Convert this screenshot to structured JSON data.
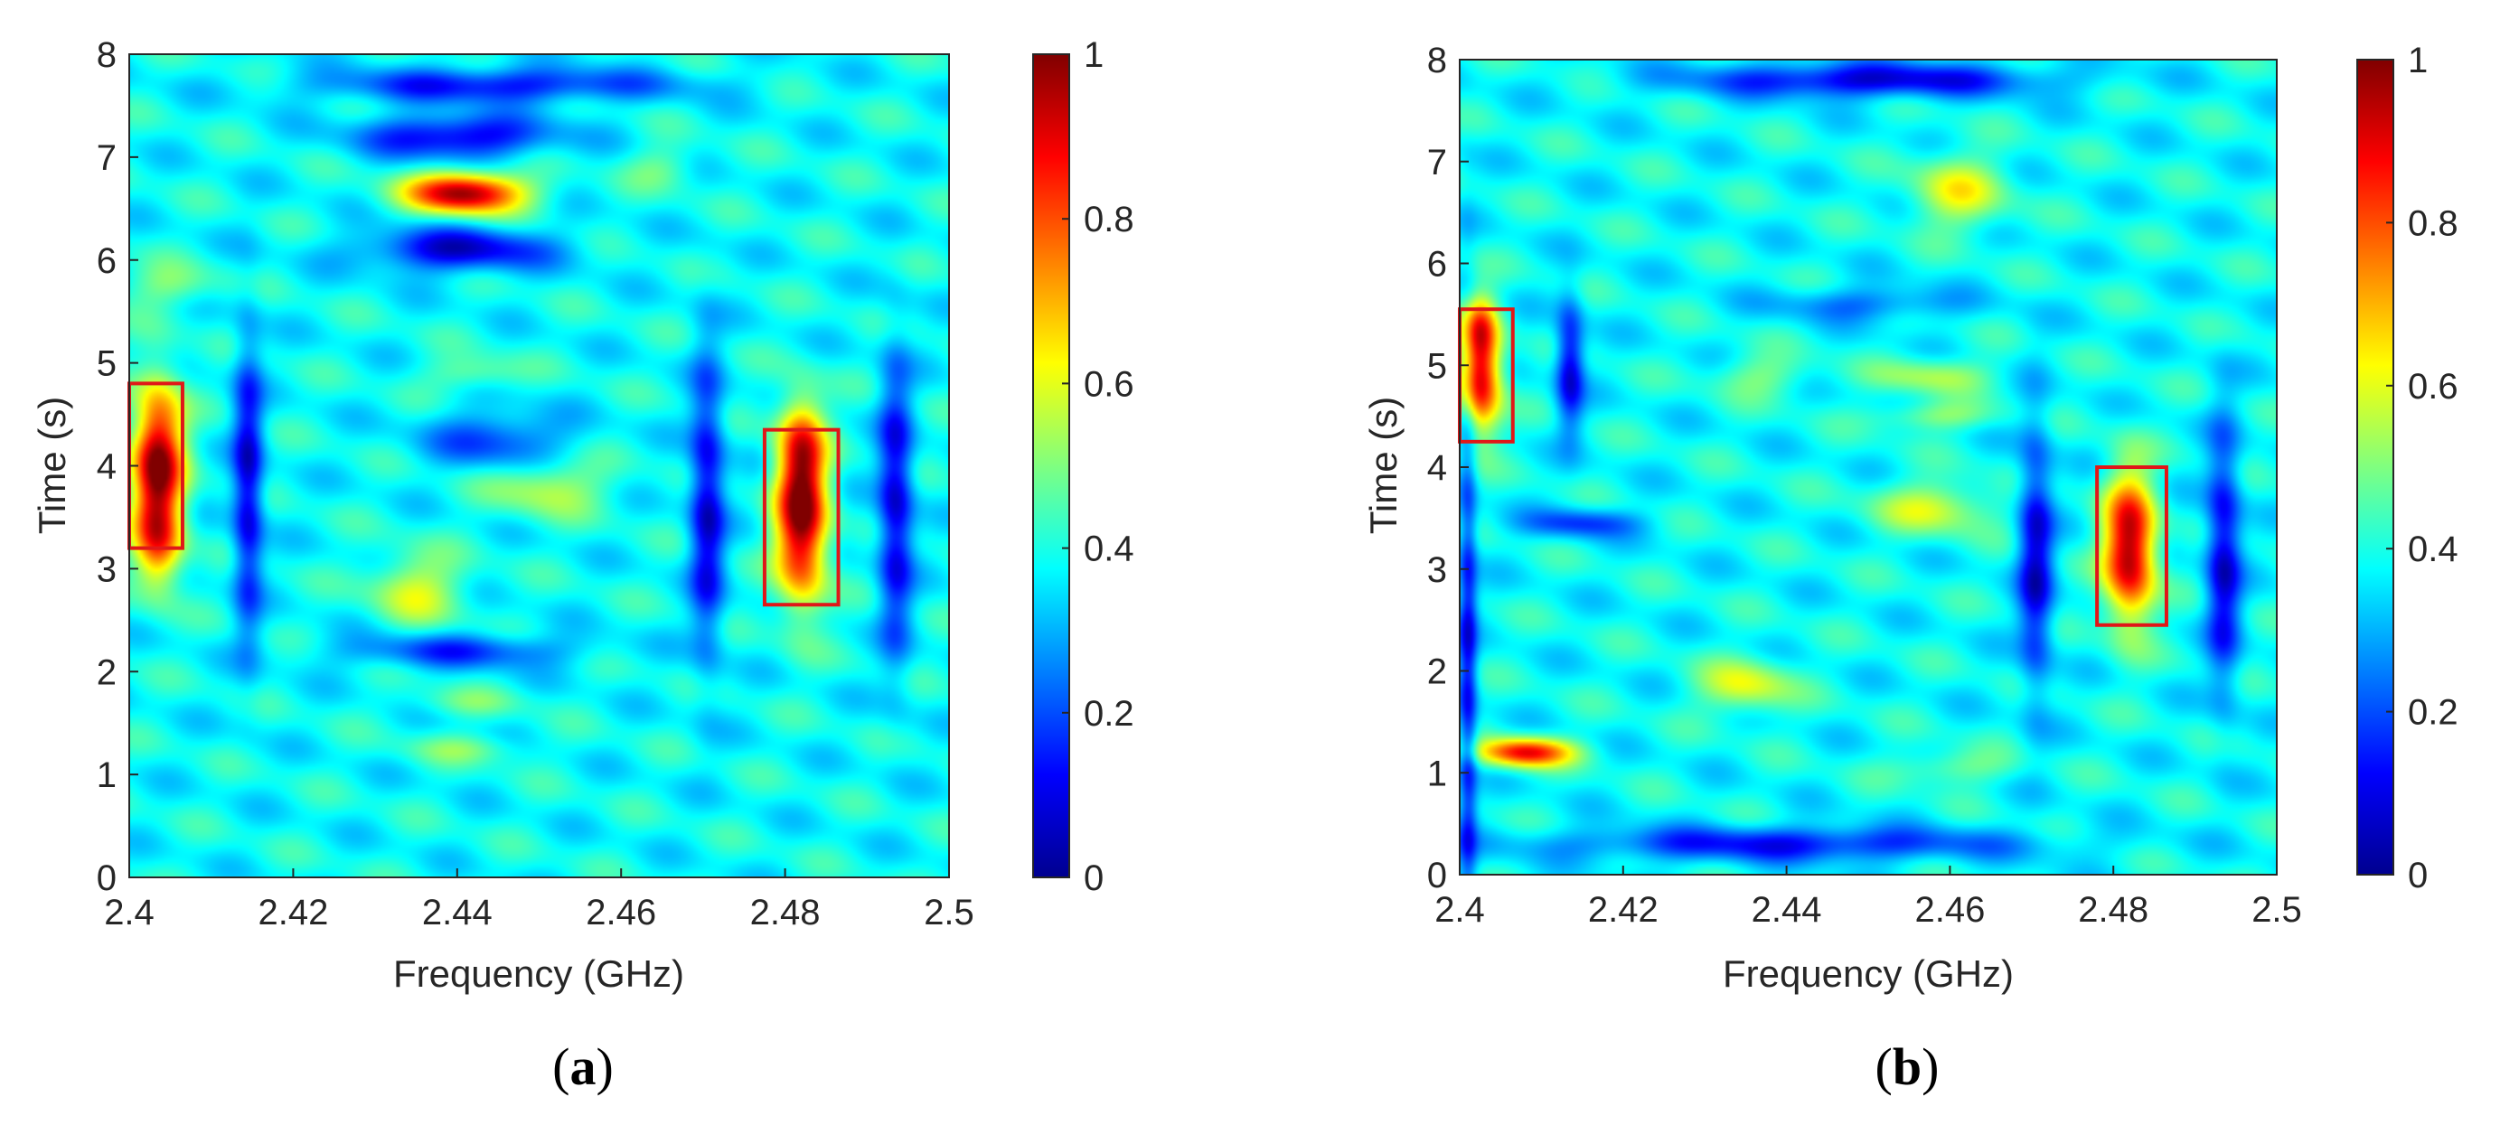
{
  "colors": {
    "background": "#40c0ff",
    "box": "#e01818",
    "axis": "#262626"
  },
  "colormap": "jet",
  "chart_data": [
    {
      "type": "heatmap",
      "panel_label": "a",
      "xlabel": "Frequency (GHz)",
      "ylabel": "Time (s)",
      "xlim": [
        2.4,
        2.5
      ],
      "ylim": [
        0,
        8
      ],
      "xticks": [
        "2.4",
        "2.42",
        "2.44",
        "2.46",
        "2.48",
        "2.5"
      ],
      "yticks": [
        "0",
        "1",
        "2",
        "3",
        "4",
        "5",
        "6",
        "7",
        "8"
      ],
      "colorbar": {
        "range": [
          0,
          1
        ],
        "ticks": [
          "0",
          "0.2",
          "0.4",
          "0.6",
          "0.8",
          "1"
        ]
      },
      "baseline": 0.38,
      "hot_spots": [
        {
          "f": 2.4035,
          "t": 4.0,
          "sf": 0.0022,
          "st": 0.55,
          "a": 0.62
        },
        {
          "f": 2.4035,
          "t": 3.2,
          "sf": 0.002,
          "st": 0.3,
          "a": 0.25
        },
        {
          "f": 2.482,
          "t": 3.45,
          "sf": 0.0022,
          "st": 0.55,
          "a": 0.6
        },
        {
          "f": 2.482,
          "t": 4.2,
          "sf": 0.002,
          "st": 0.35,
          "a": 0.3
        },
        {
          "f": 2.441,
          "t": 6.65,
          "sf": 0.005,
          "st": 0.14,
          "a": 0.6
        },
        {
          "f": 2.435,
          "t": 2.8,
          "sf": 0.004,
          "st": 0.25,
          "a": 0.2
        },
        {
          "f": 2.451,
          "t": 3.8,
          "sf": 0.005,
          "st": 0.2,
          "a": 0.18
        },
        {
          "f": 2.405,
          "t": 5.75,
          "sf": 0.004,
          "st": 0.15,
          "a": 0.12
        },
        {
          "f": 2.465,
          "t": 6.9,
          "sf": 0.003,
          "st": 0.15,
          "a": 0.1
        },
        {
          "f": 2.442,
          "t": 4.9,
          "sf": 0.004,
          "st": 0.12,
          "a": 0.12
        },
        {
          "f": 2.441,
          "t": 1.25,
          "sf": 0.005,
          "st": 0.1,
          "a": 0.1
        },
        {
          "f": 2.441,
          "t": 1.7,
          "sf": 0.005,
          "st": 0.1,
          "a": 0.08
        }
      ],
      "cold_spots": [
        {
          "f": 2.4145,
          "t": 3.8,
          "sf": 0.0013,
          "st": 1.0,
          "a": 0.3
        },
        {
          "f": 2.4705,
          "t": 3.6,
          "sf": 0.0015,
          "st": 1.0,
          "a": 0.3
        },
        {
          "f": 2.4935,
          "t": 3.6,
          "sf": 0.0015,
          "st": 1.0,
          "a": 0.3
        },
        {
          "f": 2.44,
          "t": 7.2,
          "sf": 0.008,
          "st": 0.15,
          "a": 0.3
        },
        {
          "f": 2.44,
          "t": 6.1,
          "sf": 0.008,
          "st": 0.15,
          "a": 0.3
        },
        {
          "f": 2.445,
          "t": 7.7,
          "sf": 0.015,
          "st": 0.12,
          "a": 0.25
        },
        {
          "f": 2.44,
          "t": 2.2,
          "sf": 0.01,
          "st": 0.12,
          "a": 0.2
        },
        {
          "f": 2.445,
          "t": 4.25,
          "sf": 0.006,
          "st": 0.2,
          "a": 0.2
        }
      ],
      "boxes": [
        {
          "f0": 2.4,
          "f1": 2.4065,
          "t0": 3.2,
          "t1": 4.8
        },
        {
          "f0": 2.4775,
          "f1": 2.4865,
          "t0": 2.65,
          "t1": 4.35
        }
      ]
    },
    {
      "type": "heatmap",
      "panel_label": "b",
      "xlabel": "Frequency (GHz)",
      "ylabel": "Time (s)",
      "xlim": [
        2.4,
        2.5
      ],
      "ylim": [
        0,
        8
      ],
      "xticks": [
        "2.4",
        "2.42",
        "2.44",
        "2.46",
        "2.48",
        "2.5"
      ],
      "yticks": [
        "0",
        "1",
        "2",
        "3",
        "4",
        "5",
        "6",
        "7",
        "8"
      ],
      "colorbar": {
        "range": [
          0,
          1
        ],
        "ticks": [
          "0",
          "0.2",
          "0.4",
          "0.6",
          "0.8",
          "1"
        ]
      },
      "baseline": 0.38,
      "hot_spots": [
        {
          "f": 2.4025,
          "t": 4.9,
          "sf": 0.0018,
          "st": 0.4,
          "a": 0.55
        },
        {
          "f": 2.4025,
          "t": 5.4,
          "sf": 0.0015,
          "st": 0.2,
          "a": 0.22
        },
        {
          "f": 2.482,
          "t": 3.2,
          "sf": 0.0022,
          "st": 0.5,
          "a": 0.6
        },
        {
          "f": 2.408,
          "t": 1.2,
          "sf": 0.004,
          "st": 0.1,
          "a": 0.5
        },
        {
          "f": 2.435,
          "t": 1.85,
          "sf": 0.004,
          "st": 0.18,
          "a": 0.22
        },
        {
          "f": 2.461,
          "t": 6.7,
          "sf": 0.004,
          "st": 0.25,
          "a": 0.22
        },
        {
          "f": 2.458,
          "t": 4.9,
          "sf": 0.005,
          "st": 0.12,
          "a": 0.16
        },
        {
          "f": 2.458,
          "t": 4.5,
          "sf": 0.005,
          "st": 0.1,
          "a": 0.14
        },
        {
          "f": 2.458,
          "t": 3.6,
          "sf": 0.005,
          "st": 0.18,
          "a": 0.2
        },
        {
          "f": 2.437,
          "t": 4.9,
          "sf": 0.004,
          "st": 0.15,
          "a": 0.12
        },
        {
          "f": 2.46,
          "t": 1.05,
          "sf": 0.005,
          "st": 0.12,
          "a": 0.12
        }
      ],
      "cold_spots": [
        {
          "f": 2.4135,
          "t": 5.0,
          "sf": 0.0012,
          "st": 0.45,
          "a": 0.3
        },
        {
          "f": 2.4705,
          "t": 3.1,
          "sf": 0.0015,
          "st": 0.9,
          "a": 0.3
        },
        {
          "f": 2.4935,
          "t": 3.1,
          "sf": 0.0015,
          "st": 0.9,
          "a": 0.3
        },
        {
          "f": 2.45,
          "t": 7.8,
          "sf": 0.015,
          "st": 0.12,
          "a": 0.3
        },
        {
          "f": 2.44,
          "t": 0.3,
          "sf": 0.02,
          "st": 0.12,
          "a": 0.25
        },
        {
          "f": 2.401,
          "t": 2.0,
          "sf": 0.0008,
          "st": 2.0,
          "a": 0.25
        },
        {
          "f": 2.415,
          "t": 3.45,
          "sf": 0.005,
          "st": 0.1,
          "a": 0.2
        },
        {
          "f": 2.45,
          "t": 5.6,
          "sf": 0.008,
          "st": 0.12,
          "a": 0.15
        }
      ],
      "boxes": [
        {
          "f0": 2.4,
          "f1": 2.4065,
          "t0": 4.25,
          "t1": 5.55
        },
        {
          "f0": 2.478,
          "f1": 2.4865,
          "t0": 2.45,
          "t1": 4.0
        }
      ]
    }
  ]
}
